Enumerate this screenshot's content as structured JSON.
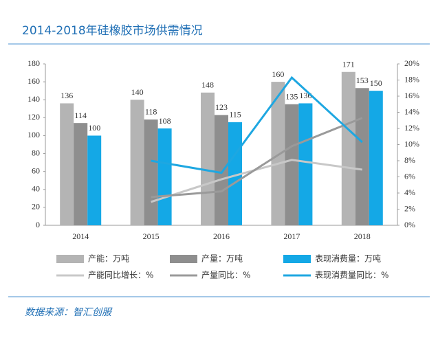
{
  "chart_data": {
    "type": "bar-line",
    "title": "2014-2018年硅橡胶市场供需情况",
    "source": "数据来源：智汇创服",
    "categories": [
      "2014",
      "2015",
      "2016",
      "2017",
      "2018"
    ],
    "series": [
      {
        "name": "产能：万吨",
        "type": "bar",
        "color": "#b4b4b4",
        "values": [
          136,
          140,
          148,
          160,
          171
        ]
      },
      {
        "name": "产量：万吨",
        "type": "bar",
        "color": "#8e8e8e",
        "values": [
          114,
          118,
          123,
          135,
          153
        ]
      },
      {
        "name": "表现消费量：万吨",
        "type": "bar",
        "color": "#14a8e6",
        "values": [
          100,
          108,
          115,
          136,
          150
        ]
      },
      {
        "name": "产能同比增长：%",
        "type": "line",
        "axis": "y2",
        "color": "#c8c8c8",
        "values": [
          null,
          2.9,
          5.7,
          8.1,
          6.9
        ]
      },
      {
        "name": "产量同比：%",
        "type": "line",
        "axis": "y2",
        "color": "#9a9a9a",
        "values": [
          null,
          3.5,
          4.2,
          9.8,
          13.3
        ]
      },
      {
        "name": "表现消费量同比：%",
        "type": "line",
        "axis": "y2",
        "color": "#1ea7e1",
        "values": [
          null,
          8.0,
          6.5,
          18.3,
          10.3
        ]
      }
    ],
    "ylim": [
      0,
      180
    ],
    "yticks": [
      0,
      20,
      40,
      60,
      80,
      100,
      120,
      140,
      160,
      180
    ],
    "y2lim": [
      0,
      20
    ],
    "y2ticks": [
      {
        "value": 0,
        "label": "0%"
      },
      {
        "value": 2,
        "label": "2%"
      },
      {
        "value": 4,
        "label": "4%"
      },
      {
        "value": 6,
        "label": "6%"
      },
      {
        "value": 8,
        "label": "8%"
      },
      {
        "value": 10,
        "label": "10%"
      },
      {
        "value": 12,
        "label": "12%"
      },
      {
        "value": 14,
        "label": "14%"
      },
      {
        "value": 16,
        "label": "16%"
      },
      {
        "value": 18,
        "label": "18%"
      },
      {
        "value": 20,
        "label": "20%"
      }
    ]
  }
}
